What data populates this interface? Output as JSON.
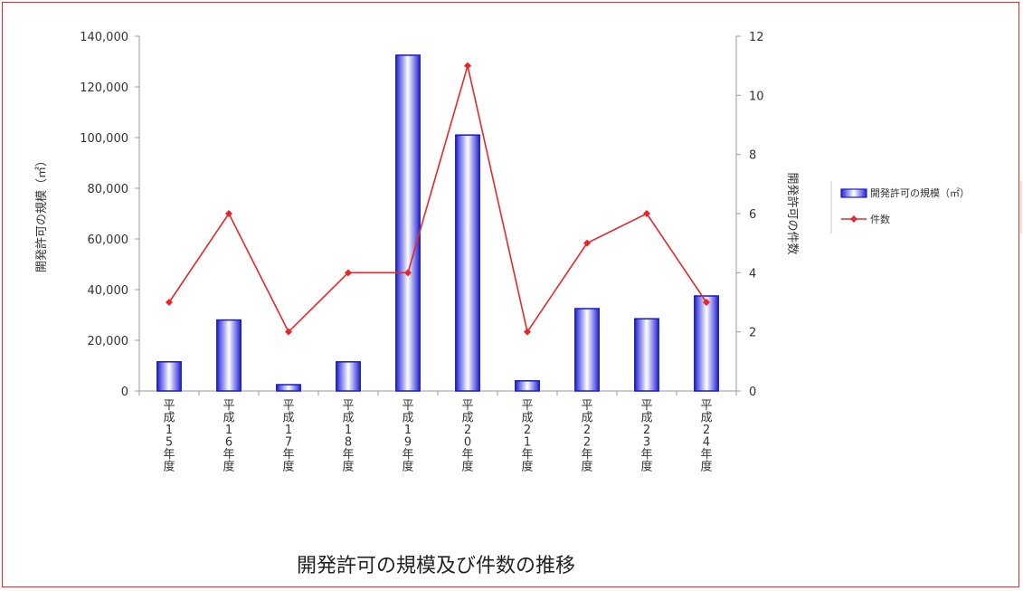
{
  "chart_data": {
    "type": "bar",
    "title": "開発許可の規模及び件数の推移",
    "categories": [
      "平成15年度",
      "平成16年度",
      "平成17年度",
      "平成18年度",
      "平成19年度",
      "平成20年度",
      "平成21年度",
      "平成22年度",
      "平成23年度",
      "平成24年度"
    ],
    "series": [
      {
        "name": "開発許可の規模（㎡）",
        "type": "bar",
        "axis": "left",
        "values": [
          11500,
          28000,
          2500,
          11500,
          132500,
          101000,
          4000,
          32500,
          28500,
          37500
        ]
      },
      {
        "name": "件数",
        "type": "line",
        "axis": "right",
        "values": [
          3,
          6,
          2,
          4,
          4,
          11,
          2,
          5,
          6,
          3
        ]
      }
    ],
    "ylabel": "開発許可の規模（㎡）",
    "y2label": "開発許可の件数",
    "ylim": [
      0,
      140000
    ],
    "y2lim": [
      0,
      12
    ],
    "yticks": [
      "0",
      "20,000",
      "40,000",
      "60,000",
      "80,000",
      "100,000",
      "120,000",
      "140,000"
    ],
    "y2ticks": [
      "0",
      "2",
      "4",
      "6",
      "8",
      "10",
      "12"
    ],
    "grid": false,
    "legend_position": "right",
    "colors": {
      "bar_edge": "#1a1acc",
      "bar_dark": "#2020d0",
      "bar_light": "#ffffff",
      "line": "#e8262a",
      "frame": "#e0302a"
    }
  }
}
